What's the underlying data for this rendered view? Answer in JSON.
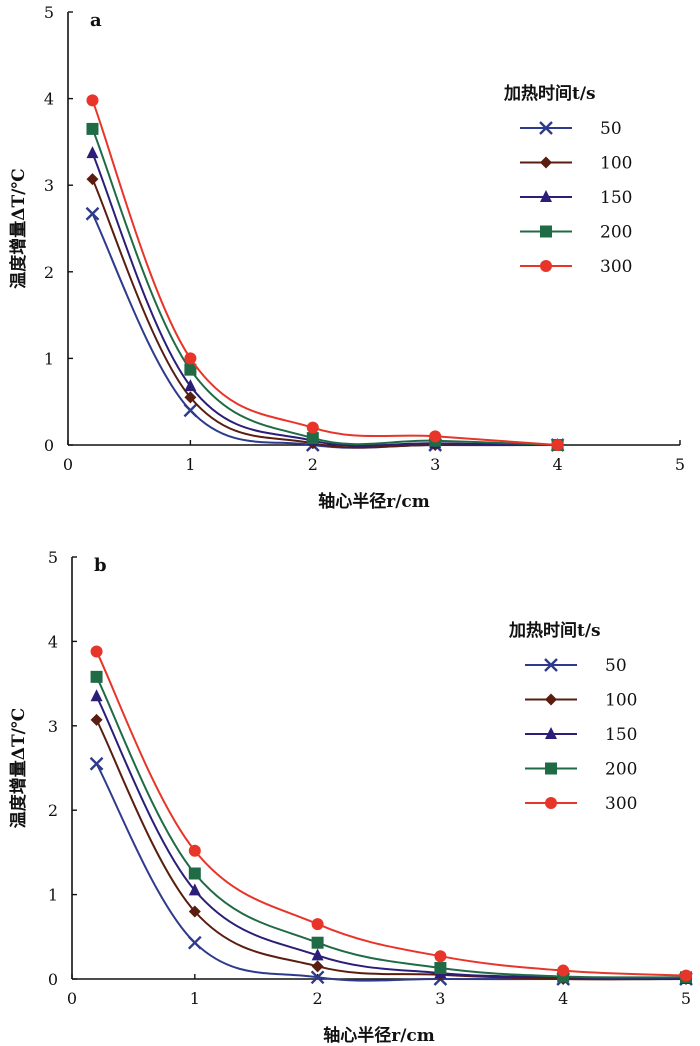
{
  "chart_data": [
    {
      "type": "line",
      "panel_label": "a",
      "xlabel": "轴心半径r/cm",
      "ylabel": "温度增量ΔT/℃",
      "xlim": [
        0,
        5
      ],
      "ylim": [
        0,
        5
      ],
      "xticks": [
        0,
        1,
        2,
        3,
        4,
        5
      ],
      "yticks": [
        0,
        1,
        2,
        3,
        4,
        5
      ],
      "grid": false,
      "legend_title": "加热时间t/s",
      "legend_position": "right",
      "series": [
        {
          "name": "50",
          "color": "#2E3A8C",
          "marker": "x",
          "x": [
            0.2,
            1,
            2,
            3,
            4
          ],
          "y": [
            2.67,
            0.4,
            0.0,
            0.0,
            0.0
          ]
        },
        {
          "name": "100",
          "color": "#5A1E10",
          "marker": "diamond",
          "x": [
            0.2,
            1,
            2,
            3,
            4
          ],
          "y": [
            3.07,
            0.55,
            0.02,
            0.0,
            0.0
          ]
        },
        {
          "name": "150",
          "color": "#2A1E78",
          "marker": "triangle",
          "x": [
            0.2,
            1,
            2,
            3,
            4
          ],
          "y": [
            3.37,
            0.68,
            0.05,
            0.02,
            0.0
          ]
        },
        {
          "name": "200",
          "color": "#1F6B45",
          "marker": "square",
          "x": [
            0.2,
            1,
            2,
            3,
            4
          ],
          "y": [
            3.65,
            0.87,
            0.08,
            0.05,
            0.0
          ]
        },
        {
          "name": "300",
          "color": "#E8352A",
          "marker": "circle",
          "x": [
            0.2,
            1,
            2,
            3,
            4
          ],
          "y": [
            3.98,
            1.0,
            0.2,
            0.1,
            0.0
          ]
        }
      ]
    },
    {
      "type": "line",
      "panel_label": "b",
      "xlabel": "轴心半径r/cm",
      "ylabel": "温度增量ΔT/℃",
      "xlim": [
        0,
        5
      ],
      "ylim": [
        0,
        5
      ],
      "xticks": [
        0,
        1,
        2,
        3,
        4,
        5
      ],
      "yticks": [
        0,
        1,
        2,
        3,
        4,
        5
      ],
      "grid": false,
      "legend_title": "加热时间t/s",
      "legend_position": "right",
      "series": [
        {
          "name": "50",
          "color": "#2E3A8C",
          "marker": "x",
          "x": [
            0.2,
            1,
            2,
            3,
            4,
            5
          ],
          "y": [
            2.55,
            0.43,
            0.02,
            0.0,
            0.0,
            0.0
          ]
        },
        {
          "name": "100",
          "color": "#5A1E10",
          "marker": "diamond",
          "x": [
            0.2,
            1,
            2,
            3,
            4,
            5
          ],
          "y": [
            3.07,
            0.8,
            0.15,
            0.05,
            0.0,
            0.0
          ]
        },
        {
          "name": "150",
          "color": "#2A1E78",
          "marker": "triangle",
          "x": [
            0.2,
            1,
            2,
            3,
            4,
            5
          ],
          "y": [
            3.35,
            1.05,
            0.28,
            0.07,
            0.02,
            0.0
          ]
        },
        {
          "name": "200",
          "color": "#1F6B45",
          "marker": "square",
          "x": [
            0.2,
            1,
            2,
            3,
            4,
            5
          ],
          "y": [
            3.58,
            1.25,
            0.43,
            0.13,
            0.03,
            0.02
          ]
        },
        {
          "name": "300",
          "color": "#E8352A",
          "marker": "circle",
          "x": [
            0.2,
            1,
            2,
            3,
            4,
            5
          ],
          "y": [
            3.88,
            1.52,
            0.65,
            0.27,
            0.1,
            0.04
          ]
        }
      ]
    }
  ]
}
